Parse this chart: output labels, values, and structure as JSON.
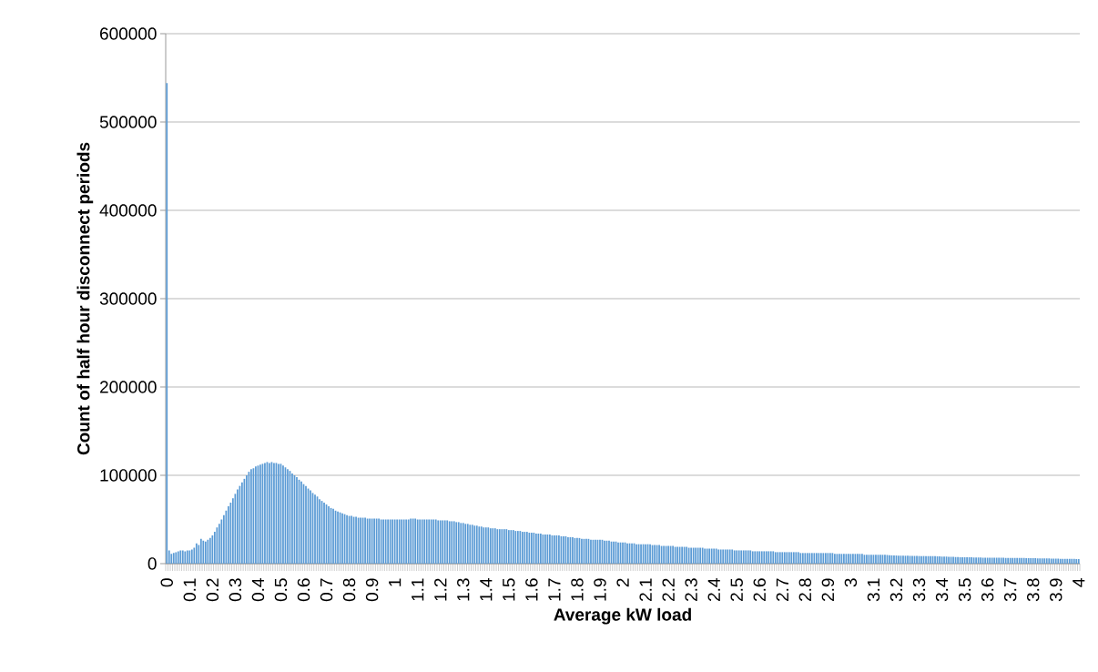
{
  "chart_data": {
    "type": "bar",
    "xlabel": "Average kW load",
    "ylabel": "Count of half hour disconnect periods",
    "color": "#5b9bd5",
    "grid": "y",
    "ylim": [
      0,
      600000
    ],
    "yticks": [
      0,
      100000,
      200000,
      300000,
      400000,
      500000,
      600000
    ],
    "categories": [
      "0",
      null,
      null,
      null,
      null,
      null,
      null,
      null,
      null,
      null,
      "0.1",
      null,
      null,
      null,
      null,
      null,
      null,
      null,
      null,
      null,
      "0.2",
      null,
      null,
      null,
      null,
      null,
      null,
      null,
      null,
      null,
      "0.3",
      null,
      null,
      null,
      null,
      null,
      null,
      null,
      null,
      null,
      "0.4",
      null,
      null,
      null,
      null,
      null,
      null,
      null,
      null,
      null,
      "0.5",
      null,
      null,
      null,
      null,
      null,
      null,
      null,
      null,
      null,
      "0.6",
      null,
      null,
      null,
      null,
      null,
      null,
      null,
      null,
      null,
      "0.7",
      null,
      null,
      null,
      null,
      null,
      null,
      null,
      null,
      null,
      "0.8",
      null,
      null,
      null,
      null,
      null,
      null,
      null,
      null,
      null,
      "0.9",
      null,
      null,
      null,
      null,
      null,
      null,
      null,
      null,
      null,
      "1",
      null,
      null,
      null,
      null,
      null,
      null,
      null,
      null,
      null,
      "1.1",
      null,
      null,
      null,
      null,
      null,
      null,
      null,
      null,
      null,
      "1.2",
      null,
      null,
      null,
      null,
      null,
      null,
      null,
      null,
      null,
      "1.3",
      null,
      null,
      null,
      null,
      null,
      null,
      null,
      null,
      null,
      "1.4",
      null,
      null,
      null,
      null,
      null,
      null,
      null,
      null,
      null,
      "1.5",
      null,
      null,
      null,
      null,
      null,
      null,
      null,
      null,
      null,
      "1.6",
      null,
      null,
      null,
      null,
      null,
      null,
      null,
      null,
      null,
      "1.7",
      null,
      null,
      null,
      null,
      null,
      null,
      null,
      null,
      null,
      "1.8",
      null,
      null,
      null,
      null,
      null,
      null,
      null,
      null,
      null,
      "1.9",
      null,
      null,
      null,
      null,
      null,
      null,
      null,
      null,
      null,
      "2",
      null,
      null,
      null,
      null,
      null,
      null,
      null,
      null,
      null,
      "2.1",
      null,
      null,
      null,
      null,
      null,
      null,
      null,
      null,
      null,
      "2.2",
      null,
      null,
      null,
      null,
      null,
      null,
      null,
      null,
      null,
      "2.3",
      null,
      null,
      null,
      null,
      null,
      null,
      null,
      null,
      null,
      "2.4",
      null,
      null,
      null,
      null,
      null,
      null,
      null,
      null,
      null,
      "2.5",
      null,
      null,
      null,
      null,
      null,
      null,
      null,
      null,
      null,
      "2.6",
      null,
      null,
      null,
      null,
      null,
      null,
      null,
      null,
      null,
      "2.7",
      null,
      null,
      null,
      null,
      null,
      null,
      null,
      null,
      null,
      "2.8",
      null,
      null,
      null,
      null,
      null,
      null,
      null,
      null,
      null,
      "2.9",
      null,
      null,
      null,
      null,
      null,
      null,
      null,
      null,
      null,
      "3",
      null,
      null,
      null,
      null,
      null,
      null,
      null,
      null,
      null,
      "3.1",
      null,
      null,
      null,
      null,
      null,
      null,
      null,
      null,
      null,
      "3.2",
      null,
      null,
      null,
      null,
      null,
      null,
      null,
      null,
      null,
      "3.3",
      null,
      null,
      null,
      null,
      null,
      null,
      null,
      null,
      null,
      "3.4",
      null,
      null,
      null,
      null,
      null,
      null,
      null,
      null,
      null,
      "3.5",
      null,
      null,
      null,
      null,
      null,
      null,
      null,
      null,
      null,
      "3.6",
      null,
      null,
      null,
      null,
      null,
      null,
      null,
      null,
      null,
      "3.7",
      null,
      null,
      null,
      null,
      null,
      null,
      null,
      null,
      null,
      "3.8",
      null,
      null,
      null,
      null,
      null,
      null,
      null,
      null,
      null,
      "3.9",
      null,
      null,
      null,
      null,
      null,
      null,
      null,
      null,
      null,
      "4"
    ],
    "values": [
      544000,
      15000,
      11000,
      12000,
      13000,
      14000,
      15000,
      15000,
      14000,
      15000,
      15000,
      16000,
      18000,
      23000,
      21000,
      28000,
      26000,
      25000,
      27000,
      29000,
      32000,
      36000,
      41000,
      45000,
      50000,
      55000,
      60000,
      65000,
      69000,
      74000,
      79000,
      84000,
      88000,
      92000,
      96000,
      100000,
      104000,
      107000,
      108000,
      110000,
      111000,
      112000,
      113000,
      114000,
      115000,
      114000,
      115000,
      114000,
      114000,
      113000,
      113000,
      111000,
      109000,
      107000,
      105000,
      102000,
      100000,
      98000,
      95000,
      93000,
      90000,
      88000,
      85000,
      83000,
      80000,
      78000,
      76000,
      73000,
      71000,
      69000,
      67000,
      65000,
      63000,
      62000,
      60000,
      59000,
      58000,
      57000,
      56000,
      55000,
      54000,
      54000,
      53000,
      53000,
      52000,
      52000,
      52000,
      52000,
      51000,
      51000,
      51000,
      51000,
      51000,
      51000,
      50000,
      50000,
      50000,
      50000,
      50000,
      50000,
      50000,
      50000,
      50000,
      50000,
      50000,
      50000,
      50000,
      51000,
      51000,
      51000,
      50000,
      50000,
      50000,
      50000,
      50000,
      50000,
      50000,
      50000,
      50000,
      49000,
      49000,
      49000,
      49000,
      49000,
      48000,
      48000,
      48000,
      47000,
      47000,
      46000,
      46000,
      45000,
      45000,
      44000,
      44000,
      43000,
      43000,
      42000,
      42000,
      41000,
      41000,
      41000,
      40000,
      40000,
      40000,
      39000,
      39000,
      39000,
      39000,
      39000,
      38000,
      38000,
      38000,
      37000,
      37000,
      37000,
      36000,
      36000,
      36000,
      35000,
      35000,
      35000,
      34000,
      34000,
      34000,
      33000,
      33000,
      33000,
      33000,
      32000,
      32000,
      32000,
      32000,
      31000,
      31000,
      31000,
      30000,
      30000,
      30000,
      29000,
      29000,
      29000,
      28000,
      28000,
      28000,
      28000,
      27000,
      27000,
      27000,
      27000,
      27000,
      27000,
      26000,
      26000,
      26000,
      25000,
      25000,
      25000,
      24000,
      24000,
      24000,
      24000,
      23000,
      23000,
      23000,
      23000,
      22000,
      22000,
      22000,
      22000,
      22000,
      22000,
      22000,
      21000,
      21000,
      21000,
      21000,
      20000,
      20000,
      20000,
      20000,
      20000,
      20000,
      19000,
      19000,
      19000,
      19000,
      19000,
      19000,
      18000,
      18000,
      18000,
      18000,
      18000,
      18000,
      18000,
      17000,
      17000,
      17000,
      17000,
      17000,
      17000,
      16000,
      16000,
      16000,
      16000,
      16000,
      16000,
      16000,
      15000,
      15000,
      15000,
      15000,
      15000,
      15000,
      15000,
      15000,
      14000,
      14000,
      14000,
      14000,
      14000,
      14000,
      14000,
      14000,
      14000,
      14000,
      13000,
      13000,
      13000,
      13000,
      13000,
      13000,
      13000,
      13000,
      13000,
      13000,
      13000,
      12000,
      12000,
      12000,
      12000,
      12000,
      12000,
      12000,
      12000,
      12000,
      12000,
      12000,
      12000,
      12000,
      12000,
      12000,
      11000,
      11000,
      11000,
      11000,
      11000,
      11000,
      11000,
      11000,
      11000,
      11000,
      11000,
      11000,
      11000,
      10000,
      10000,
      10000,
      10000,
      10000,
      10000,
      10000,
      10000,
      10000,
      10000,
      9800,
      9600,
      9400,
      9300,
      9200,
      9100,
      9000,
      9000,
      8900,
      8900,
      8800,
      8800,
      8700,
      8700,
      8600,
      8600,
      8600,
      8600,
      8600,
      8600,
      8500,
      8400,
      8300,
      8200,
      8100,
      8000,
      7900,
      7800,
      7700,
      7600,
      7500,
      7400,
      7300,
      7300,
      7200,
      7200,
      7100,
      7100,
      7000,
      7000,
      6900,
      6900,
      6800,
      6800,
      6800,
      6700,
      6700,
      6700,
      6600,
      6600,
      6600,
      6600,
      6500,
      6500,
      6500,
      6500,
      6500,
      6500,
      6500,
      6500,
      6400,
      6300,
      6300,
      6200,
      6200,
      6100,
      6000,
      6000,
      5900,
      5900,
      5800,
      5800,
      5700,
      5700,
      5600,
      5600,
      5500,
      5500,
      5400,
      5400,
      5400,
      5300,
      5300,
      5200,
      5200
    ]
  }
}
